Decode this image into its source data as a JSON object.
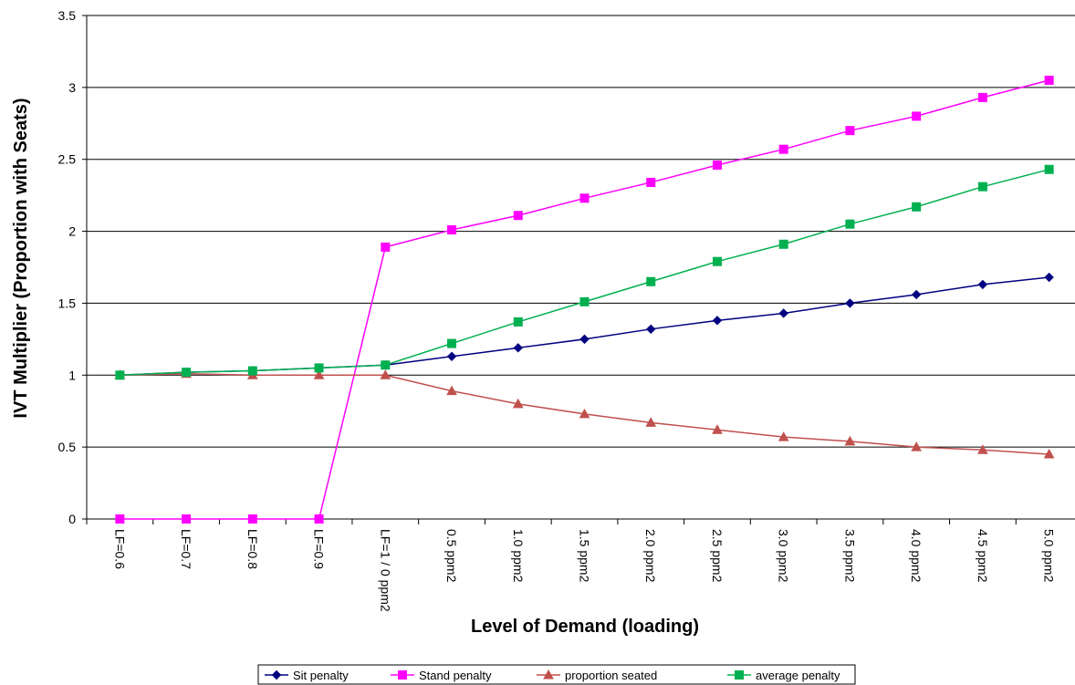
{
  "chart_data": {
    "type": "line",
    "title": "",
    "xlabel": "Level of Demand (loading)",
    "ylabel": "IVT Multiplier (Proportion with Seats)",
    "ylim": [
      0,
      3.5
    ],
    "yticks": [
      "0",
      "0.5",
      "1",
      "1.5",
      "2",
      "2.5",
      "3",
      "3.5"
    ],
    "grid": "horizontal",
    "legend_position": "bottom",
    "categories": [
      "LF=0.6",
      "LF=0.7",
      "LF=0.8",
      "LF=0.9",
      "LF=1 / 0 ppm2",
      "0.5 ppm2",
      "1.0 ppm2",
      "1.5 ppm2",
      "2.0 ppm2",
      "2.5 ppm2",
      "3.0 ppm2",
      "3.5 ppm2",
      "4.0 ppm2",
      "4.5 ppm2",
      "5.0 ppm2"
    ],
    "series": [
      {
        "name": "Sit penalty",
        "color": "#000080",
        "marker": "diamond",
        "values": [
          1.0,
          1.02,
          1.03,
          1.05,
          1.07,
          1.13,
          1.19,
          1.25,
          1.32,
          1.38,
          1.43,
          1.5,
          1.56,
          1.63,
          1.68
        ]
      },
      {
        "name": "Stand penalty",
        "color": "#FF00FF",
        "marker": "square",
        "values": [
          0,
          0,
          0,
          0,
          1.89,
          2.01,
          2.11,
          2.23,
          2.34,
          2.46,
          2.57,
          2.7,
          2.8,
          2.93,
          3.05
        ]
      },
      {
        "name": "proportion seated",
        "color": "#C0504D",
        "marker": "triangle",
        "values": [
          1.0,
          1.01,
          1.0,
          1.0,
          1.0,
          0.89,
          0.8,
          0.73,
          0.67,
          0.62,
          0.57,
          0.54,
          0.5,
          0.48,
          0.45
        ]
      },
      {
        "name": "average penalty",
        "color": "#00B050",
        "marker": "square",
        "values": [
          1.0,
          1.02,
          1.03,
          1.05,
          1.07,
          1.22,
          1.37,
          1.51,
          1.65,
          1.79,
          1.91,
          2.05,
          2.17,
          2.31,
          2.43
        ]
      }
    ]
  }
}
